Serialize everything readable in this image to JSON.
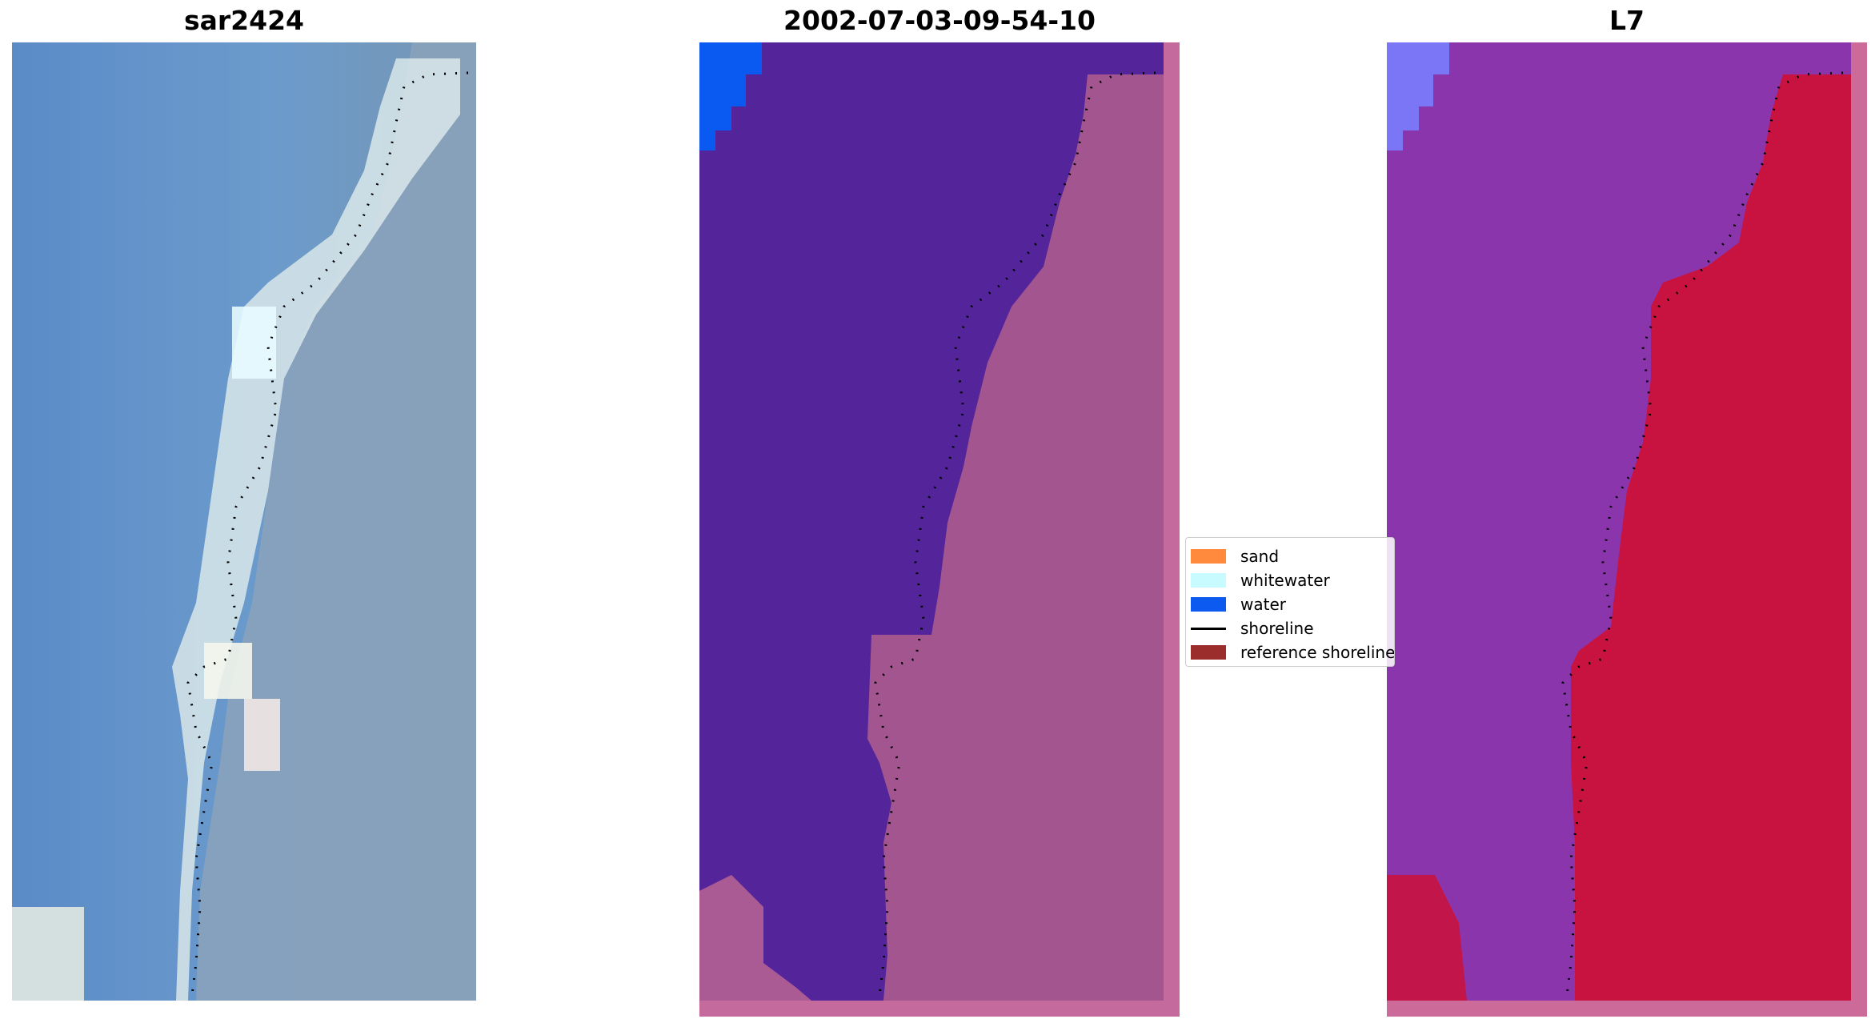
{
  "panels": [
    {
      "title": "sar2424"
    },
    {
      "title": "2002-07-03-09-54-10"
    },
    {
      "title": "L7"
    }
  ],
  "legend": {
    "items": [
      {
        "label": "sand",
        "kind": "patch",
        "color": "#ff8a3d"
      },
      {
        "label": "whitewater",
        "kind": "patch",
        "color": "#c8fbff"
      },
      {
        "label": "water",
        "kind": "patch",
        "color": "#0d5af0"
      },
      {
        "label": "shoreline",
        "kind": "line",
        "color": "#000000"
      },
      {
        "label": "reference shoreline",
        "kind": "patch",
        "color": "#9b2d2d"
      }
    ]
  },
  "colors": {
    "sar_water": "#5f8fc7",
    "sar_foam": "#e6efe8",
    "sar_land": "#7e9ab6",
    "class_water": "#54259a",
    "class_land": "#ab5b94",
    "class_frame": "#c46a9c",
    "class_bluepatch": "#0a5af2",
    "l7_water": "#8b35ad",
    "l7_land": "#c8123f",
    "l7_border": "#cc6a9a",
    "l7_bluepatch": "#7a76f5"
  }
}
